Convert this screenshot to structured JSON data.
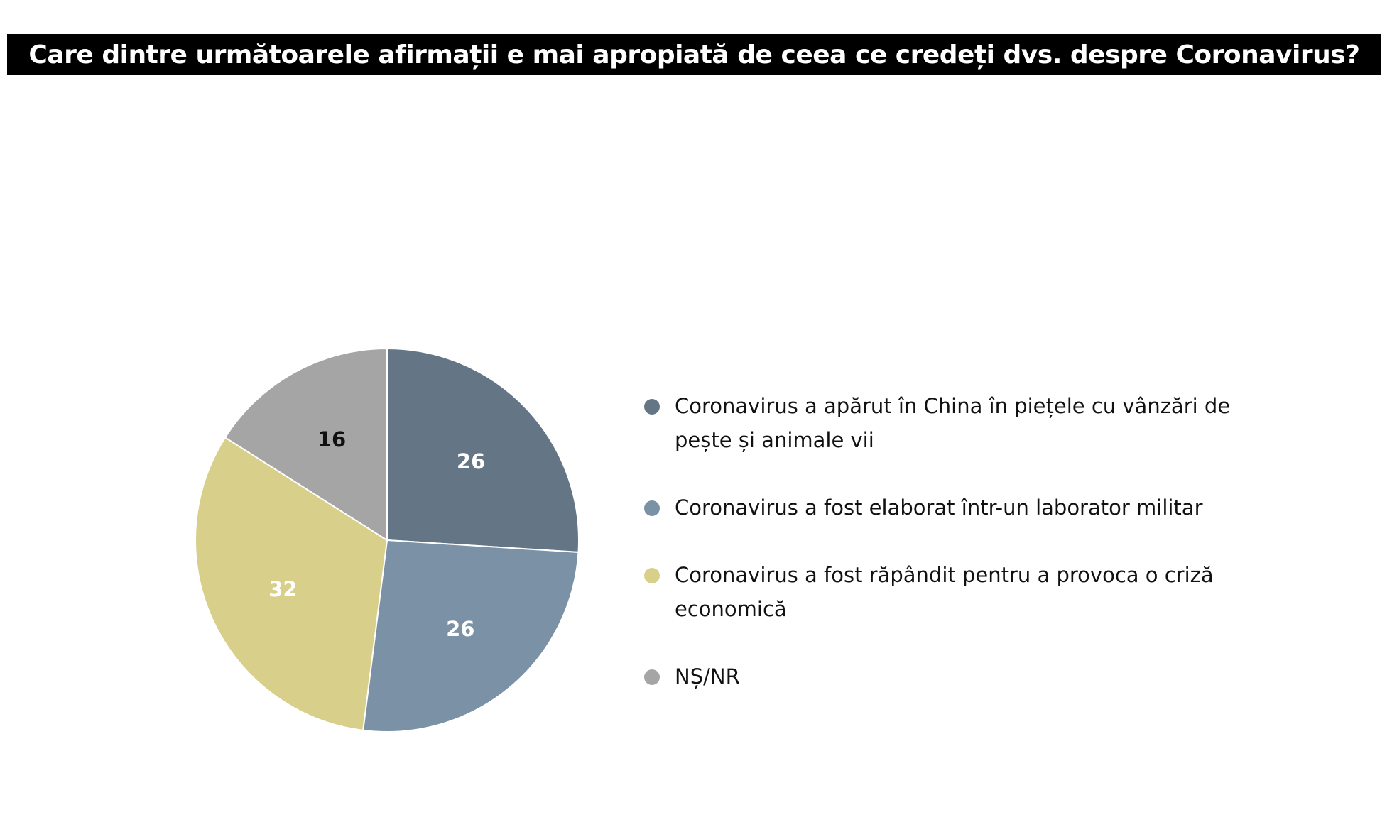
{
  "title": "Care dintre următoarele afirmații e mai apropiată de ceea ce credeți dvs. despre Coronavirus?",
  "chart_data": {
    "type": "pie",
    "title": "Care dintre următoarele afirmații e mai apropiată de ceea ce credeți dvs. despre Coronavirus?",
    "legend_position": "right",
    "slices": [
      {
        "label": "Coronavirus a apărut în China în piețele cu vânzări de pește și animale vii",
        "value": 26,
        "value_label": "26",
        "color": "#647685",
        "label_color": "#ffffff"
      },
      {
        "label": "Coronavirus a fost elaborat într-un laborator militar",
        "value": 26,
        "value_label": "26",
        "color": "#7b91a5",
        "label_color": "#ffffff"
      },
      {
        "label": "Coronavirus a fost răpândit pentru a provoca o criză economică",
        "value": 32,
        "value_label": "32",
        "color": "#d8cf8a",
        "label_color": "#ffffff"
      },
      {
        "label": "NȘ/NR",
        "value": 16,
        "value_label": "16",
        "color": "#a5a5a5",
        "label_color": "#111111"
      }
    ]
  }
}
